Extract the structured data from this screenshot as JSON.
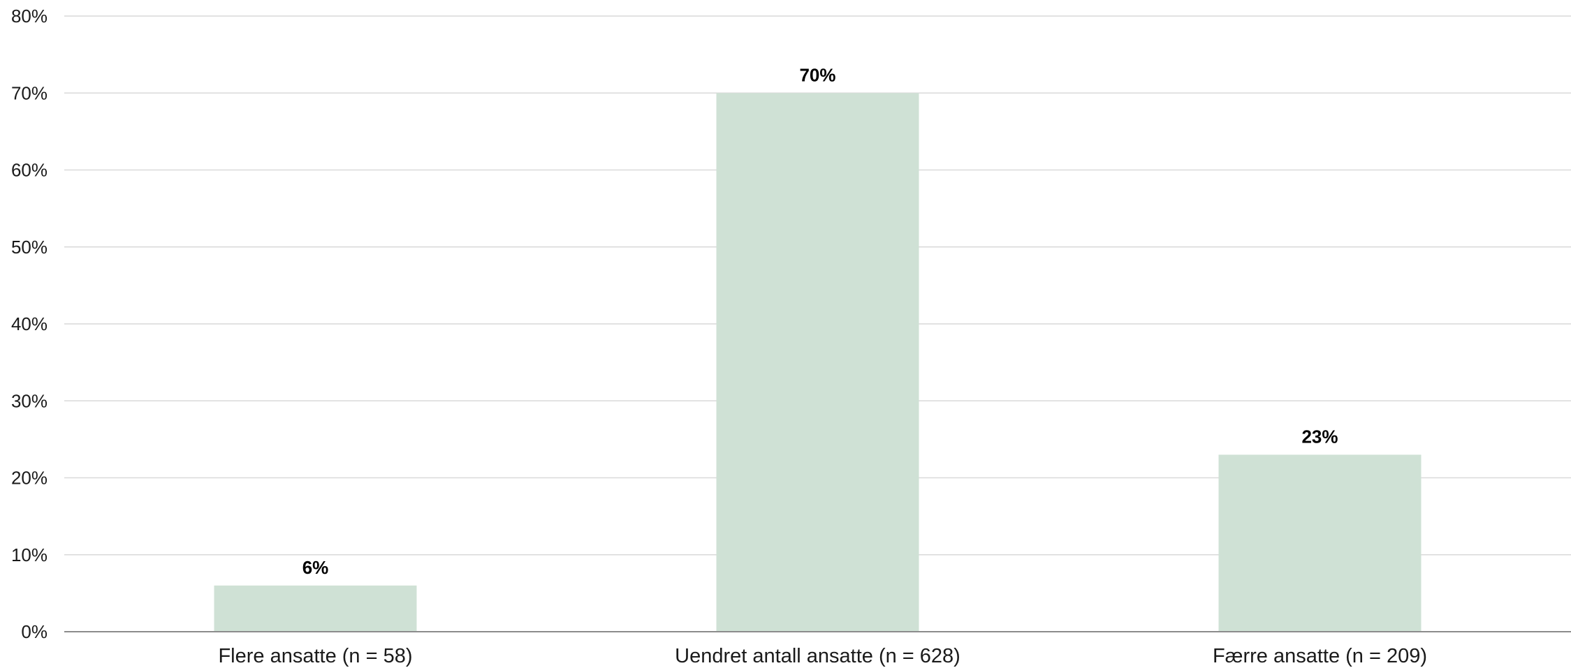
{
  "chart_data": {
    "type": "bar",
    "title": "",
    "xlabel": "",
    "ylabel": "",
    "categories": [
      "Flere ansatte (n = 58)",
      "Uendret antall ansatte (n = 628)",
      "Færre ansatte (n = 209)"
    ],
    "values": [
      6,
      70,
      23
    ],
    "value_labels": [
      "6%",
      "70%",
      "23%"
    ],
    "ylim": [
      0,
      80
    ],
    "yticks": [
      0,
      10,
      20,
      30,
      40,
      50,
      60,
      70,
      80
    ],
    "ytick_labels": [
      "0%",
      "10%",
      "20%",
      "30%",
      "40%",
      "50%",
      "60%",
      "70%",
      "80%"
    ],
    "grid": true,
    "legend": "none",
    "colors": {
      "bar": "#cfe1d5",
      "grid": "#d9d9d9",
      "axis": "#8c8c8c"
    }
  }
}
